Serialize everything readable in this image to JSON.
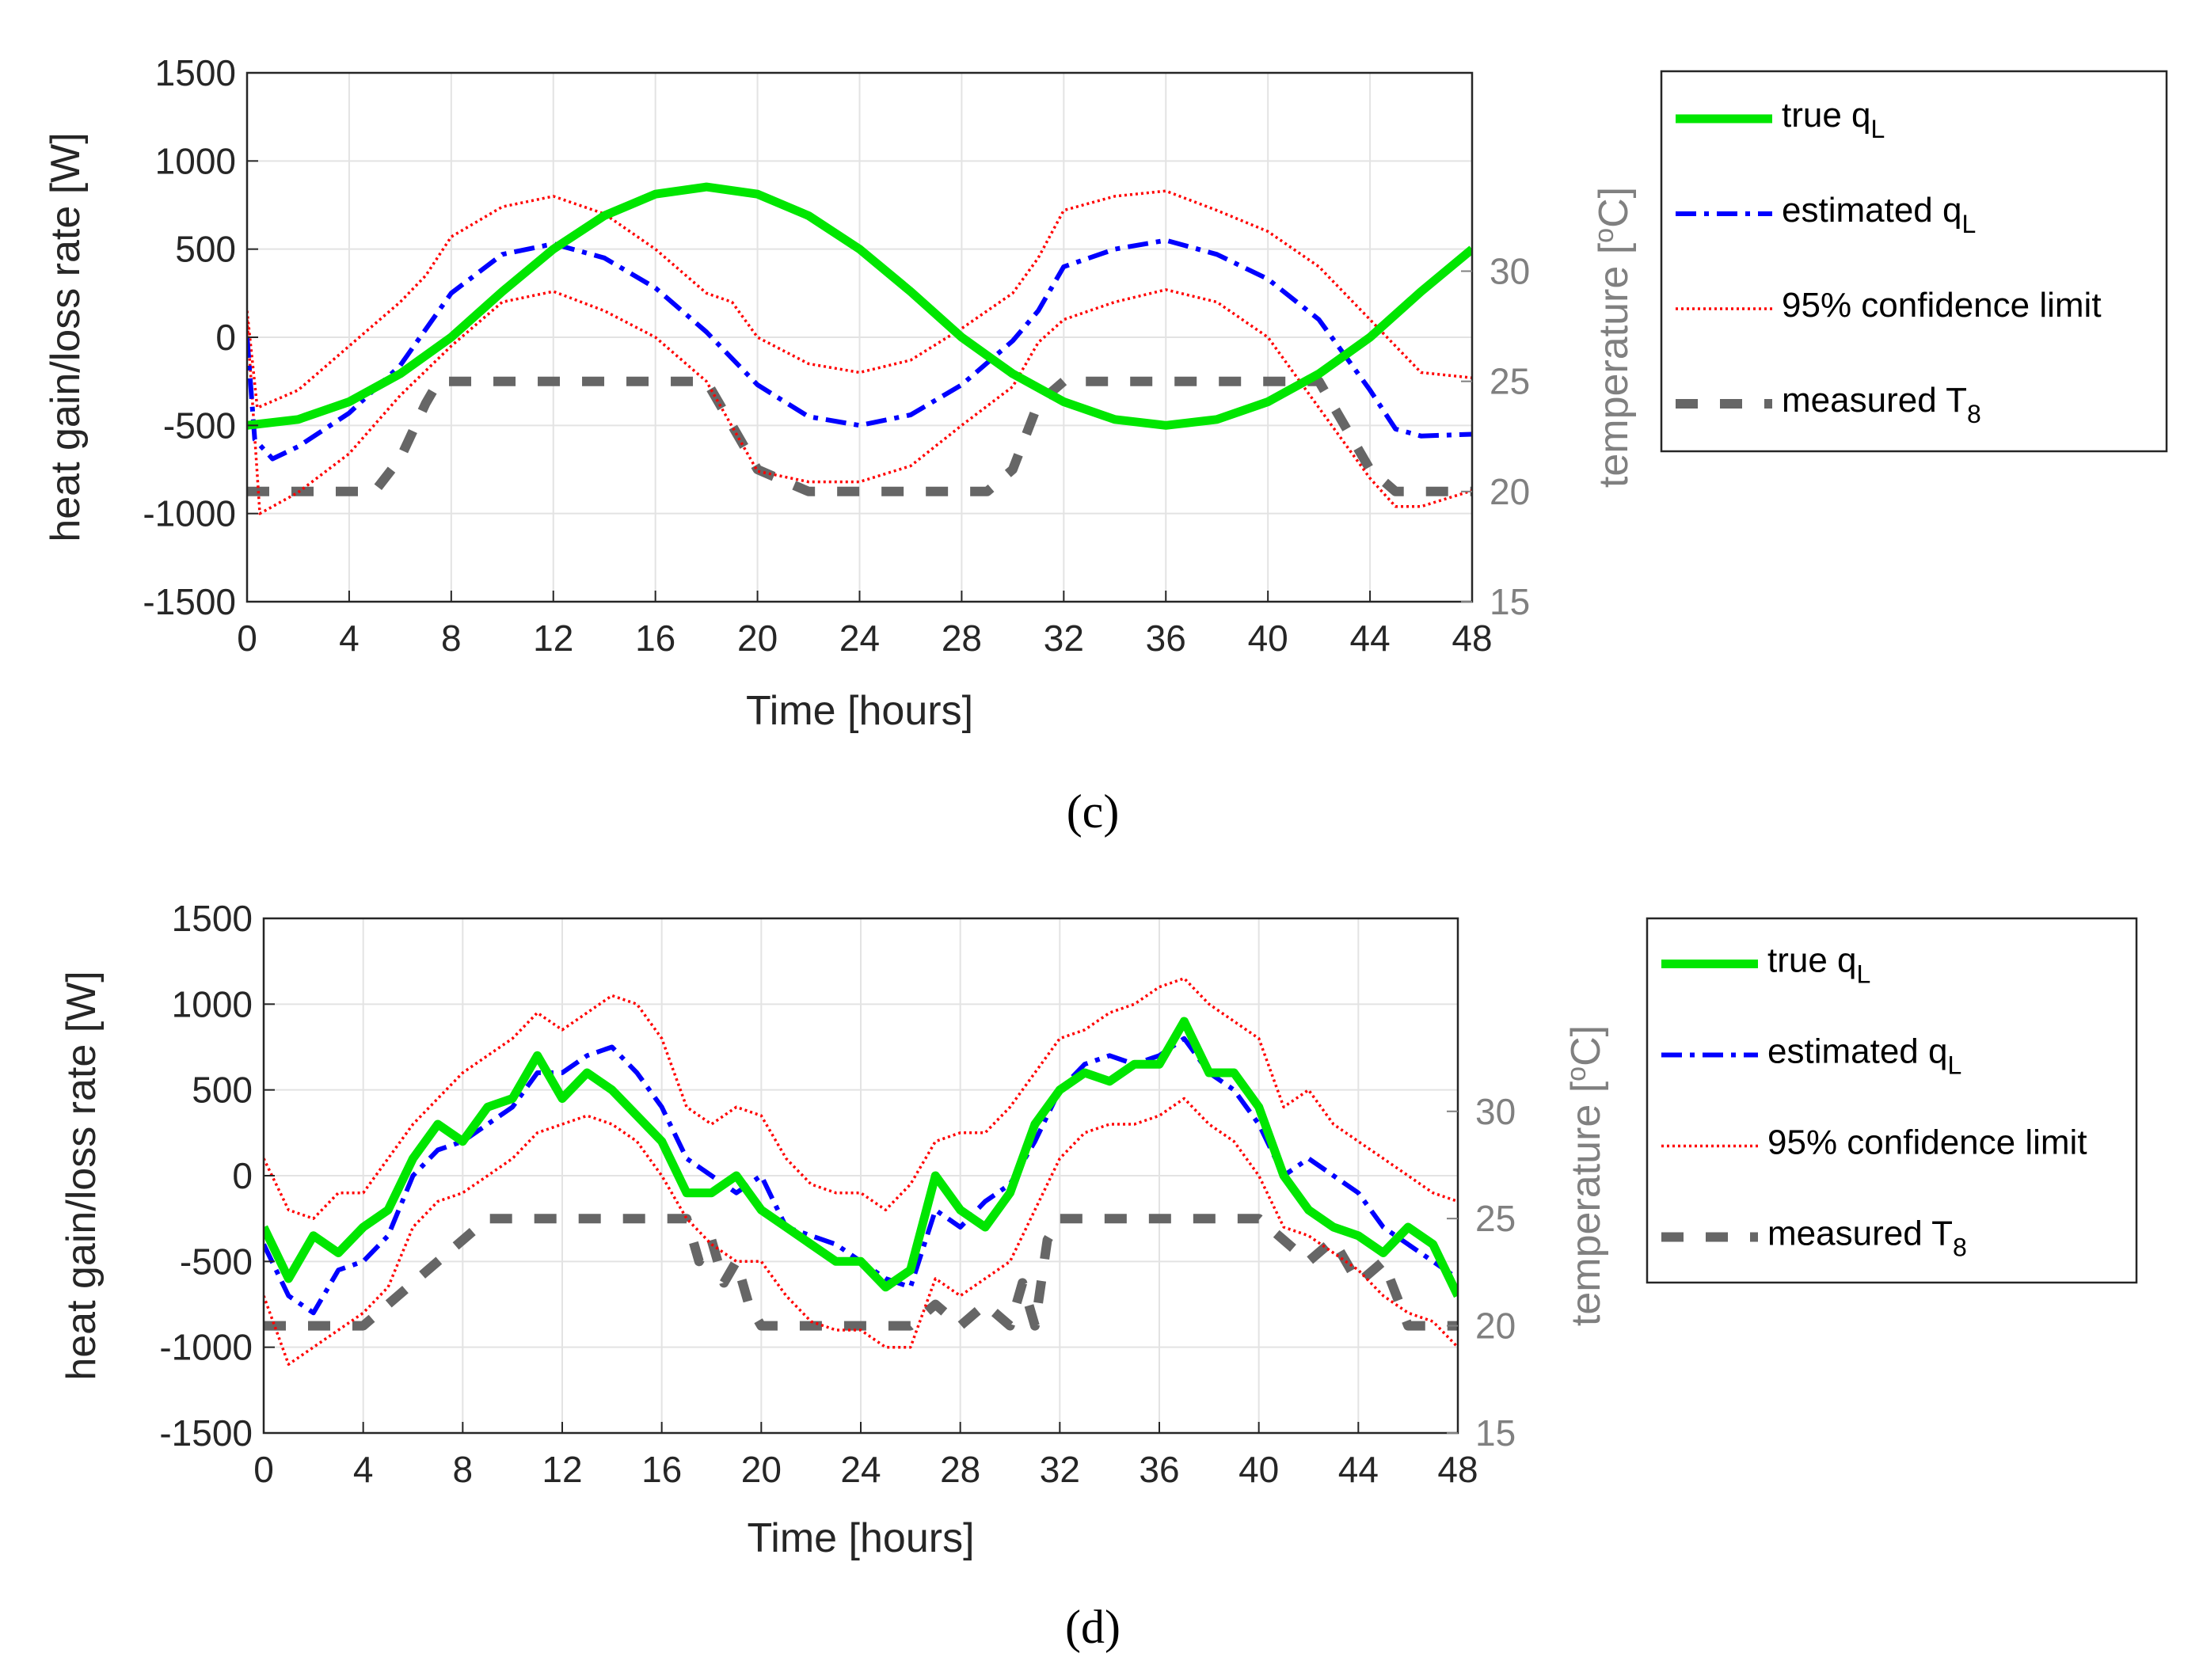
{
  "chart_data": [
    {
      "type": "line",
      "panel_label": "(c)",
      "xlabel": "Time [hours]",
      "ylabel": "heat gain/loss rate [W]",
      "y2label": "temperature [oC]",
      "y2label_main": "temperature [",
      "y2label_sup": "o",
      "y2label_tail": "C]",
      "xlim": [
        0,
        48
      ],
      "ylim": [
        -1500,
        1500
      ],
      "y2lim": [
        15,
        39
      ],
      "xticks": [
        "0",
        "4",
        "8",
        "12",
        "16",
        "20",
        "24",
        "28",
        "32",
        "36",
        "40",
        "44",
        "48"
      ],
      "yticks": [
        "1500",
        "1000",
        "500",
        "0",
        "-500",
        "-1000",
        "-1500"
      ],
      "y2ticks": [
        "30",
        "25",
        "20",
        "15"
      ],
      "grid": true,
      "legend_position": "outside-right",
      "legend": [
        {
          "label": "true qL",
          "main": "true q",
          "sub": "L",
          "color": "#00e600",
          "style": "solid"
        },
        {
          "label": "estimated qL",
          "main": "estimated q",
          "sub": "L",
          "color": "#0000ff",
          "style": "dash-dot"
        },
        {
          "label": "95% confidence limit",
          "main": "95% confidence limit",
          "sub": "",
          "color": "#ff0000",
          "style": "dotted"
        },
        {
          "label": "measured T8",
          "main": "measured T",
          "sub": "8",
          "color": "#666666",
          "style": "dashed"
        }
      ],
      "series": [
        {
          "name": "true qL",
          "axis": "left",
          "x": [
            0,
            2,
            4,
            6,
            8,
            10,
            12,
            14,
            16,
            18,
            20,
            22,
            24,
            26,
            28,
            30,
            32,
            34,
            36,
            38,
            40,
            42,
            44,
            46,
            48
          ],
          "values": [
            -500,
            -466,
            -366,
            -207,
            0,
            259,
            500,
            690,
            812,
            853,
            812,
            690,
            500,
            259,
            0,
            -207,
            -366,
            -466,
            -500,
            -466,
            -366,
            -207,
            0,
            259,
            500
          ]
        },
        {
          "name": "estimated qL",
          "axis": "left",
          "x": [
            0,
            0.3,
            1,
            2,
            4,
            6,
            8,
            10,
            12,
            14,
            16,
            18,
            20,
            22,
            24,
            26,
            28,
            30,
            31,
            32,
            34,
            36,
            38,
            40,
            42,
            44,
            45,
            46,
            48
          ],
          "values": [
            0,
            -580,
            -690,
            -620,
            -430,
            -160,
            250,
            470,
            530,
            450,
            280,
            30,
            -270,
            -450,
            -500,
            -440,
            -270,
            -20,
            150,
            400,
            500,
            550,
            470,
            330,
            100,
            -300,
            -520,
            -560,
            -550
          ]
        },
        {
          "name": "upper 95% confidence limit",
          "axis": "left",
          "x": [
            0,
            0.4,
            2,
            4,
            6,
            7,
            8,
            10,
            12,
            14,
            16,
            18,
            19,
            20,
            22,
            24,
            26,
            28,
            30,
            31,
            32,
            34,
            36,
            38,
            40,
            42,
            44,
            46,
            48
          ],
          "values": [
            150,
            -400,
            -300,
            -50,
            200,
            350,
            570,
            740,
            800,
            700,
            500,
            250,
            200,
            0,
            -150,
            -200,
            -130,
            50,
            250,
            450,
            720,
            800,
            830,
            720,
            600,
            400,
            100,
            -200,
            -230
          ]
        },
        {
          "name": "lower 95% confidence limit",
          "axis": "left",
          "x": [
            0,
            0.5,
            1,
            2,
            4,
            6,
            8,
            10,
            12,
            14,
            16,
            18,
            20,
            22,
            24,
            26,
            28,
            30,
            31,
            32,
            34,
            36,
            38,
            40,
            42,
            44,
            45,
            46,
            48
          ],
          "values": [
            100,
            -1000,
            -960,
            -880,
            -660,
            -330,
            -50,
            200,
            260,
            150,
            0,
            -250,
            -760,
            -820,
            -820,
            -730,
            -500,
            -280,
            -30,
            100,
            200,
            270,
            200,
            0,
            -400,
            -800,
            -960,
            -960,
            -870
          ]
        },
        {
          "name": "measured T8",
          "axis": "right",
          "x": [
            0,
            5,
            6,
            7,
            7.5,
            8,
            16,
            18,
            19,
            20,
            22,
            28,
            29,
            30,
            31,
            32,
            40,
            42,
            43,
            44,
            45,
            48
          ],
          "values": [
            20,
            20,
            21.5,
            24,
            25,
            25,
            25,
            25,
            23,
            21,
            20,
            20,
            20,
            21,
            24,
            25,
            25,
            25,
            23,
            21,
            20,
            20
          ]
        }
      ]
    },
    {
      "type": "line",
      "panel_label": "(d)",
      "xlabel": "Time [hours]",
      "ylabel": "heat gain/loss rate [W]",
      "y2label": "temperature [oC]",
      "y2label_main": "temperature [",
      "y2label_sup": "o",
      "y2label_tail": "C]",
      "xlim": [
        0,
        48
      ],
      "ylim": [
        -1500,
        1500
      ],
      "y2lim": [
        15,
        39
      ],
      "xticks": [
        "0",
        "4",
        "8",
        "12",
        "16",
        "20",
        "24",
        "28",
        "32",
        "36",
        "40",
        "44",
        "48"
      ],
      "yticks": [
        "1500",
        "1000",
        "500",
        "0",
        "-500",
        "-1000",
        "-1500"
      ],
      "y2ticks": [
        "30",
        "25",
        "20",
        "15"
      ],
      "grid": true,
      "legend_position": "outside-right",
      "legend": [
        {
          "label": "true qL",
          "main": "true q",
          "sub": "L",
          "color": "#00e600",
          "style": "solid"
        },
        {
          "label": "estimated qL",
          "main": "estimated q",
          "sub": "L",
          "color": "#0000ff",
          "style": "dash-dot"
        },
        {
          "label": "95% confidence limit",
          "main": "95% confidence limit",
          "sub": "",
          "color": "#ff0000",
          "style": "dotted"
        },
        {
          "label": "measured T8",
          "main": "measured T",
          "sub": "8",
          "color": "#666666",
          "style": "dashed"
        }
      ],
      "series": [
        {
          "name": "true qL",
          "axis": "left",
          "x": [
            0,
            1,
            2,
            3,
            4,
            5,
            6,
            7,
            8,
            9,
            10,
            11,
            12,
            13,
            14,
            15,
            16,
            17,
            18,
            19,
            20,
            21,
            22,
            23,
            24,
            25,
            26,
            27,
            28,
            29,
            30,
            31,
            32,
            33,
            34,
            35,
            36,
            37,
            38,
            39,
            40,
            41,
            42,
            43,
            44,
            45,
            46,
            47,
            48
          ],
          "values": [
            -300,
            -600,
            -350,
            -450,
            -300,
            -200,
            100,
            300,
            200,
            400,
            450,
            700,
            450,
            600,
            500,
            350,
            200,
            -100,
            -100,
            0,
            -200,
            -300,
            -400,
            -500,
            -500,
            -650,
            -550,
            0,
            -200,
            -300,
            -100,
            300,
            500,
            600,
            550,
            650,
            650,
            900,
            600,
            600,
            400,
            0,
            -200,
            -300,
            -350,
            -450,
            -300,
            -400,
            -700
          ]
        },
        {
          "name": "estimated qL",
          "axis": "left",
          "x": [
            0,
            1,
            2,
            3,
            4,
            5,
            6,
            7,
            8,
            9,
            10,
            11,
            12,
            13,
            14,
            15,
            16,
            17,
            18,
            19,
            20,
            21,
            22,
            23,
            24,
            25,
            26,
            27,
            28,
            29,
            30,
            31,
            32,
            33,
            34,
            35,
            36,
            37,
            38,
            39,
            40,
            41,
            42,
            43,
            44,
            45,
            46,
            47,
            48
          ],
          "values": [
            -400,
            -700,
            -800,
            -550,
            -500,
            -350,
            0,
            150,
            200,
            300,
            400,
            600,
            600,
            700,
            750,
            600,
            400,
            100,
            0,
            -100,
            0,
            -300,
            -350,
            -400,
            -500,
            -600,
            -650,
            -200,
            -300,
            -150,
            -50,
            200,
            500,
            650,
            700,
            650,
            700,
            800,
            600,
            500,
            300,
            0,
            100,
            0,
            -100,
            -300,
            -400,
            -500,
            -600
          ]
        },
        {
          "name": "upper 95% confidence limit",
          "axis": "left",
          "x": [
            0,
            1,
            2,
            3,
            4,
            5,
            6,
            7,
            8,
            9,
            10,
            11,
            12,
            13,
            14,
            15,
            16,
            17,
            18,
            19,
            20,
            21,
            22,
            23,
            24,
            25,
            26,
            27,
            28,
            29,
            30,
            31,
            32,
            33,
            34,
            35,
            36,
            37,
            38,
            39,
            40,
            41,
            42,
            43,
            44,
            45,
            46,
            47,
            48
          ],
          "values": [
            100,
            -200,
            -250,
            -100,
            -100,
            100,
            300,
            450,
            600,
            700,
            800,
            950,
            850,
            950,
            1050,
            1000,
            800,
            400,
            300,
            400,
            350,
            100,
            -50,
            -100,
            -100,
            -200,
            -50,
            200,
            250,
            250,
            400,
            600,
            800,
            850,
            950,
            1000,
            1100,
            1150,
            1000,
            900,
            800,
            400,
            500,
            300,
            200,
            100,
            0,
            -100,
            -150
          ]
        },
        {
          "name": "lower 95% confidence limit",
          "axis": "left",
          "x": [
            0,
            1,
            2,
            3,
            4,
            5,
            6,
            7,
            8,
            9,
            10,
            11,
            12,
            13,
            14,
            15,
            16,
            17,
            18,
            19,
            20,
            21,
            22,
            23,
            24,
            25,
            26,
            27,
            28,
            29,
            30,
            31,
            32,
            33,
            34,
            35,
            36,
            37,
            38,
            39,
            40,
            41,
            42,
            43,
            44,
            45,
            46,
            47,
            48
          ],
          "values": [
            -700,
            -1100,
            -1000,
            -900,
            -800,
            -650,
            -300,
            -150,
            -100,
            0,
            100,
            250,
            300,
            350,
            300,
            200,
            0,
            -250,
            -400,
            -500,
            -500,
            -700,
            -850,
            -900,
            -900,
            -1000,
            -1000,
            -600,
            -700,
            -600,
            -500,
            -200,
            100,
            250,
            300,
            300,
            350,
            450,
            300,
            200,
            0,
            -300,
            -350,
            -450,
            -550,
            -700,
            -800,
            -850,
            -1000
          ]
        },
        {
          "name": "measured T8",
          "axis": "right",
          "x": [
            0,
            4,
            5,
            6,
            7,
            8,
            9,
            10,
            16,
            17,
            17.5,
            18,
            18.5,
            19,
            19.5,
            20,
            24,
            26,
            27,
            28,
            29,
            30,
            30.5,
            31,
            31.5,
            32,
            40,
            41,
            42,
            43,
            44,
            45,
            46,
            48
          ],
          "values": [
            20,
            20,
            21,
            22,
            23,
            24,
            25,
            25,
            25,
            25,
            23,
            24,
            22,
            23,
            21,
            20,
            20,
            20,
            21,
            20,
            21,
            20,
            22,
            20,
            24,
            25,
            25,
            24,
            23,
            24,
            22,
            23,
            20,
            20
          ]
        }
      ]
    }
  ]
}
